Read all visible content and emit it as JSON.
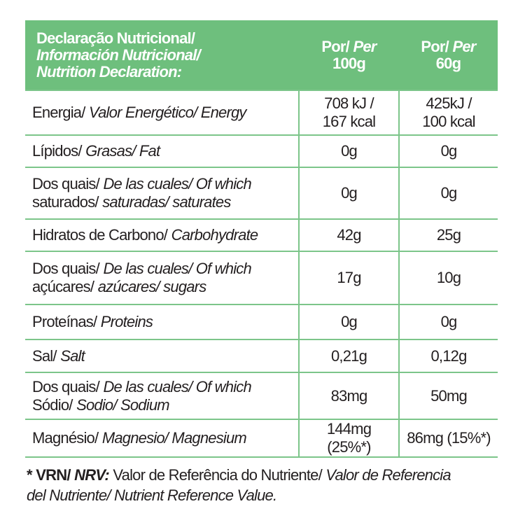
{
  "table": {
    "header": [
      [
        [
          {
            "text": "Declaração Nutricional/",
            "style": "normal"
          }
        ],
        [
          {
            "text": "Información Nutricional/",
            "style": "italic"
          }
        ],
        [
          {
            "text": "Nutrition Declaration:",
            "style": "italic"
          }
        ]
      ],
      [
        [
          {
            "text": "Por/",
            "style": "normal"
          },
          {
            "text": "Per",
            "style": "italic"
          }
        ],
        [
          {
            "text": "100g",
            "style": "normal"
          }
        ]
      ],
      [
        [
          {
            "text": "Por/",
            "style": "normal"
          },
          {
            "text": "Per",
            "style": "italic"
          }
        ],
        [
          {
            "text": "60g",
            "style": "normal"
          }
        ]
      ]
    ],
    "rows": [
      [
        [
          [
            {
              "text": "Energia/",
              "style": "normal"
            },
            {
              "text": "Valor Energético/ Energy",
              "style": "italic"
            }
          ]
        ],
        [
          [
            {
              "text": "708 kJ /",
              "style": "normal"
            }
          ],
          [
            {
              "text": "167 kcal",
              "style": "normal"
            }
          ]
        ],
        [
          [
            {
              "text": "425kJ /",
              "style": "normal"
            }
          ],
          [
            {
              "text": "100 kcal",
              "style": "normal"
            }
          ]
        ]
      ],
      [
        [
          [
            {
              "text": "Lípidos/",
              "style": "normal"
            },
            {
              "text": "Grasas/ Fat",
              "style": "italic"
            }
          ]
        ],
        [
          [
            {
              "text": "0g",
              "style": "normal"
            }
          ]
        ],
        [
          [
            {
              "text": "0g",
              "style": "normal"
            }
          ]
        ]
      ],
      [
        [
          [
            {
              "text": "Dos quais/",
              "style": "normal"
            },
            {
              "text": "De las cuales/ Of which",
              "style": "italic"
            }
          ],
          [
            {
              "text": "saturados/",
              "style": "normal"
            },
            {
              "text": "saturadas/ saturates",
              "style": "italic"
            }
          ]
        ],
        [
          [
            {
              "text": "0g",
              "style": "normal"
            }
          ]
        ],
        [
          [
            {
              "text": "0g",
              "style": "normal"
            }
          ]
        ]
      ],
      [
        [
          [
            {
              "text": "Hidratos de Carbono/",
              "style": "normal"
            },
            {
              "text": "Carbohydrate",
              "style": "italic"
            }
          ]
        ],
        [
          [
            {
              "text": "42g",
              "style": "normal"
            }
          ]
        ],
        [
          [
            {
              "text": "25g",
              "style": "normal"
            }
          ]
        ]
      ],
      [
        [
          [
            {
              "text": "Dos quais/",
              "style": "normal"
            },
            {
              "text": "De las cuales/ Of which",
              "style": "italic"
            }
          ],
          [
            {
              "text": "açúcares/",
              "style": "normal"
            },
            {
              "text": "azúcares/ sugars",
              "style": "italic"
            }
          ]
        ],
        [
          [
            {
              "text": "17g",
              "style": "normal"
            }
          ]
        ],
        [
          [
            {
              "text": "10g",
              "style": "normal"
            }
          ]
        ]
      ],
      [
        [
          [
            {
              "text": "Proteínas/",
              "style": "normal"
            },
            {
              "text": "Proteins",
              "style": "italic"
            }
          ]
        ],
        [
          [
            {
              "text": "0g",
              "style": "normal"
            }
          ]
        ],
        [
          [
            {
              "text": "0g",
              "style": "normal"
            }
          ]
        ]
      ],
      [
        [
          [
            {
              "text": "Sal/",
              "style": "normal"
            },
            {
              "text": "Salt",
              "style": "italic"
            }
          ]
        ],
        [
          [
            {
              "text": "0,21g",
              "style": "normal"
            }
          ]
        ],
        [
          [
            {
              "text": "0,12g",
              "style": "normal"
            }
          ]
        ]
      ],
      [
        [
          [
            {
              "text": "Dos quais/",
              "style": "normal"
            },
            {
              "text": "De las cuales/ Of which",
              "style": "italic"
            }
          ],
          [
            {
              "text": "Sódio/",
              "style": "normal"
            },
            {
              "text": "Sodio/ Sodium",
              "style": "italic"
            }
          ]
        ],
        [
          [
            {
              "text": "83mg",
              "style": "normal"
            }
          ]
        ],
        [
          [
            {
              "text": "50mg",
              "style": "normal"
            }
          ]
        ]
      ],
      [
        [
          [
            {
              "text": "Magnésio/",
              "style": "normal"
            },
            {
              "text": "Magnesio/ Magnesium",
              "style": "italic"
            }
          ]
        ],
        [
          [
            {
              "text": "144mg (25%*)",
              "style": "normal"
            }
          ]
        ],
        [
          [
            {
              "text": "86mg (15%*)",
              "style": "normal"
            }
          ]
        ]
      ]
    ]
  },
  "footnote": [
    [
      {
        "text": "*",
        "style": "bold"
      },
      {
        "text": "VRN/",
        "style": "bold"
      },
      {
        "text": "NRV:",
        "style": "bold-italic"
      },
      {
        "text": "Valor de Referência do Nutriente/",
        "style": "normal"
      },
      {
        "text": "Valor de Referencia",
        "style": "italic"
      }
    ],
    [
      {
        "text": "del Nutriente/ Nutrient Reference Value.",
        "style": "italic"
      }
    ]
  ]
}
